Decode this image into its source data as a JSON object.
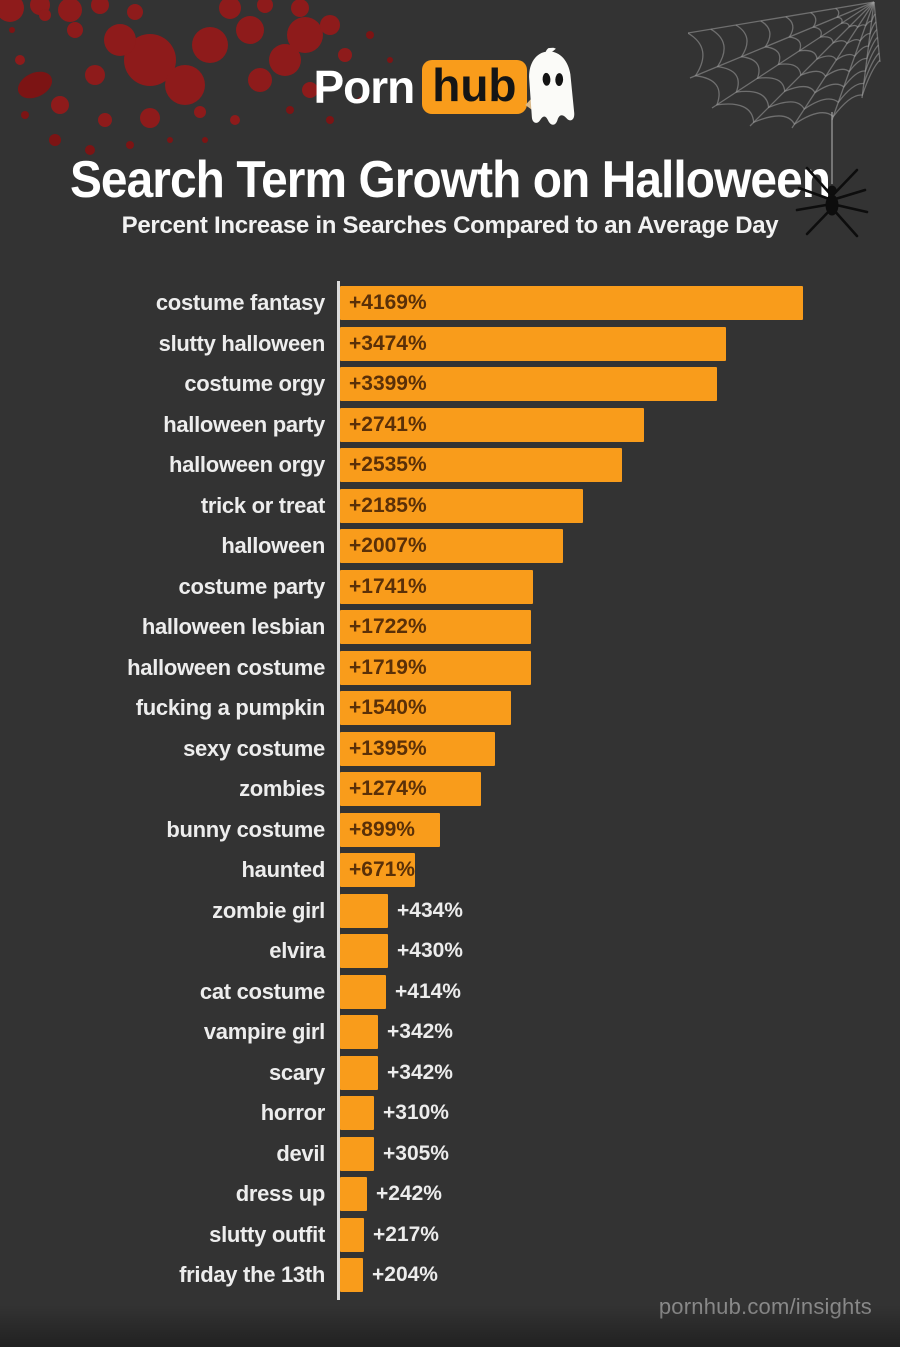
{
  "header": {
    "logo": {
      "part1": "Porn",
      "part2": "hub"
    },
    "title": "Search Term Growth on Halloween",
    "subtitle": "Percent Increase in Searches Compared to an Average Day"
  },
  "footer": {
    "url": "pornhub.com/insights"
  },
  "colors": {
    "background": "#333333",
    "bar": "#F99C1B",
    "bar_value_text": "#5A3008",
    "label_text": "#EDEDED",
    "axis_line": "#DCDCDC",
    "blood_red": "#8E1B1B",
    "footer_text": "#8A8A8A"
  },
  "chart_data": {
    "type": "bar",
    "orientation": "horizontal",
    "title": "Search Term Growth on Halloween",
    "subtitle": "Percent Increase in Searches Compared to an Average Day",
    "unit": "%",
    "value_format": "+{value}%",
    "xlim": [
      0,
      4169
    ],
    "sort": "descending",
    "legend": "none",
    "grid": "off",
    "items": [
      {
        "term": "costume fantasy",
        "value": 4169,
        "label": "+4169%"
      },
      {
        "term": "slutty halloween",
        "value": 3474,
        "label": "+3474%"
      },
      {
        "term": "costume orgy",
        "value": 3399,
        "label": "+3399%"
      },
      {
        "term": "halloween party",
        "value": 2741,
        "label": "+2741%"
      },
      {
        "term": "halloween orgy",
        "value": 2535,
        "label": "+2535%"
      },
      {
        "term": "trick or treat",
        "value": 2185,
        "label": "+2185%"
      },
      {
        "term": "halloween",
        "value": 2007,
        "label": "+2007%"
      },
      {
        "term": "costume party",
        "value": 1741,
        "label": "+1741%"
      },
      {
        "term": "halloween lesbian",
        "value": 1722,
        "label": "+1722%"
      },
      {
        "term": "halloween costume",
        "value": 1719,
        "label": "+1719%"
      },
      {
        "term": "fucking a pumpkin",
        "value": 1540,
        "label": "+1540%"
      },
      {
        "term": "sexy costume",
        "value": 1395,
        "label": "+1395%"
      },
      {
        "term": "zombies",
        "value": 1274,
        "label": "+1274%"
      },
      {
        "term": "bunny costume",
        "value": 899,
        "label": "+899%"
      },
      {
        "term": "haunted",
        "value": 671,
        "label": "+671%"
      },
      {
        "term": "zombie girl",
        "value": 434,
        "label": "+434%"
      },
      {
        "term": "elvira",
        "value": 430,
        "label": "+430%"
      },
      {
        "term": "cat costume",
        "value": 414,
        "label": "+414%"
      },
      {
        "term": "vampire girl",
        "value": 342,
        "label": "+342%"
      },
      {
        "term": "scary",
        "value": 342,
        "label": "+342%"
      },
      {
        "term": "horror",
        "value": 310,
        "label": "+310%"
      },
      {
        "term": "devil",
        "value": 305,
        "label": "+305%"
      },
      {
        "term": "dress up",
        "value": 242,
        "label": "+242%"
      },
      {
        "term": "slutty outfit",
        "value": 217,
        "label": "+217%"
      },
      {
        "term": "friday the 13th",
        "value": 204,
        "label": "+204%"
      }
    ]
  }
}
